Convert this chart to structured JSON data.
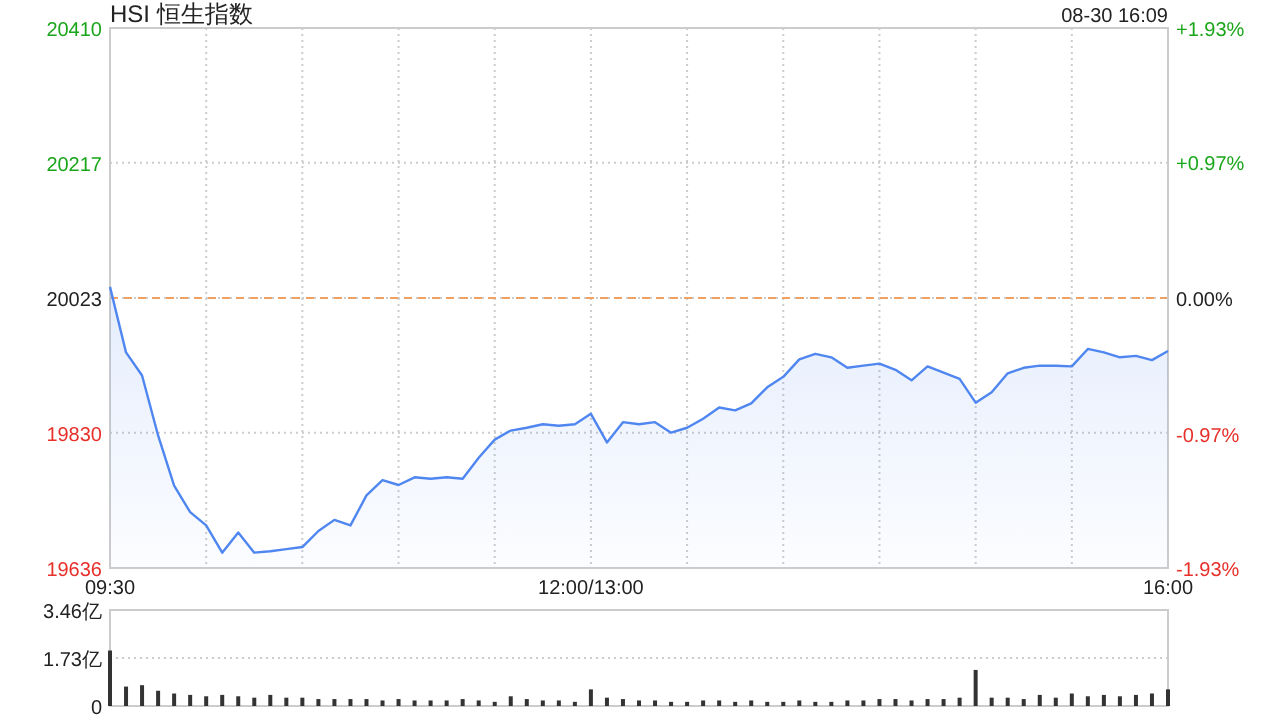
{
  "chart_data": [
    {
      "type": "area",
      "title": "HSI 恒生指数",
      "annotations": [
        "08-30 16:09"
      ],
      "categories": [
        "09:30",
        null,
        null,
        null,
        null,
        null,
        null,
        null,
        null,
        null,
        null,
        null,
        null,
        null,
        null,
        null,
        null,
        null,
        null,
        null,
        null,
        null,
        null,
        null,
        null,
        null,
        null,
        null,
        null,
        null,
        "12:00/13:00",
        null,
        null,
        null,
        null,
        null,
        null,
        null,
        null,
        null,
        null,
        null,
        null,
        null,
        null,
        null,
        null,
        null,
        null,
        null,
        null,
        null,
        null,
        null,
        null,
        null,
        null,
        null,
        null,
        null,
        null,
        null,
        null,
        null,
        null,
        null,
        "16:00"
      ],
      "series": [
        {
          "color": "#4f86f0",
          "values": [
            20039,
            19945,
            19912,
            19826,
            19754,
            19716,
            19697,
            19658,
            19687,
            19658,
            19660,
            19663,
            19666,
            19689,
            19705,
            19697,
            19740,
            19762,
            19755,
            19766,
            19764,
            19766,
            19764,
            19794,
            19820,
            19833,
            19837,
            19842,
            19840,
            19842,
            19857,
            19816,
            19845,
            19842,
            19845,
            19830,
            19837,
            19850,
            19866,
            19862,
            19872,
            19895,
            19910,
            19935,
            19943,
            19938,
            19923,
            19926,
            19929,
            19920,
            19905,
            19925,
            19916,
            19907,
            19873,
            19888,
            19915,
            19923,
            19926,
            19926,
            19925,
            19950,
            19945,
            19938,
            19940,
            19934,
            19947
          ]
        }
      ],
      "ylim": [
        19636,
        20410
      ],
      "yticks": [
        19636,
        19830,
        20023,
        20217,
        20410
      ],
      "y2lim": [
        -1.93,
        1.93
      ],
      "y2ticks": [
        {
          "value": -1.93,
          "label": "-1.93%"
        },
        {
          "value": -0.97,
          "label": "-0.97%"
        },
        {
          "value": 0,
          "label": "0.00%"
        },
        {
          "value": 0.97,
          "label": "+0.97%"
        },
        {
          "value": 1.93,
          "label": "+1.93%"
        }
      ],
      "ref_lines": [
        {
          "axis": "y",
          "value": 20023,
          "color": "#f0a060",
          "line_style": "dashed"
        }
      ],
      "grid": true
    },
    {
      "type": "bar",
      "color": "#333333",
      "categories": [
        null,
        null,
        null,
        null,
        null,
        null,
        null,
        null,
        null,
        null,
        null,
        null,
        null,
        null,
        null,
        null,
        null,
        null,
        null,
        null,
        null,
        null,
        null,
        null,
        null,
        null,
        null,
        null,
        null,
        null,
        null,
        null,
        null,
        null,
        null,
        null,
        null,
        null,
        null,
        null,
        null,
        null,
        null,
        null,
        null,
        null,
        null,
        null,
        null,
        null,
        null,
        null,
        null,
        null,
        null,
        null,
        null,
        null,
        null,
        null,
        null,
        null,
        null,
        null,
        null,
        null,
        null
      ],
      "values": [
        2.0,
        0.7,
        0.75,
        0.55,
        0.45,
        0.4,
        0.35,
        0.4,
        0.35,
        0.3,
        0.4,
        0.3,
        0.3,
        0.25,
        0.25,
        0.25,
        0.25,
        0.2,
        0.25,
        0.2,
        0.2,
        0.2,
        0.25,
        0.2,
        0.15,
        0.35,
        0.25,
        0.2,
        0.2,
        0.15,
        0.6,
        0.3,
        0.25,
        0.2,
        0.2,
        0.15,
        0.15,
        0.2,
        0.2,
        0.15,
        0.2,
        0.15,
        0.15,
        0.2,
        0.15,
        0.15,
        0.2,
        0.2,
        0.25,
        0.25,
        0.2,
        0.25,
        0.25,
        0.3,
        1.3,
        0.3,
        0.3,
        0.25,
        0.4,
        0.3,
        0.45,
        0.35,
        0.4,
        0.35,
        0.4,
        0.45,
        0.6
      ],
      "ylim": [
        0,
        3.46
      ],
      "yticks": [
        {
          "value": 0,
          "label": "0"
        },
        {
          "value": 1.73,
          "label": "1.73亿"
        },
        {
          "value": 3.46,
          "label": "3.46亿"
        }
      ],
      "tick_labels": "y",
      "grid": "y"
    }
  ]
}
